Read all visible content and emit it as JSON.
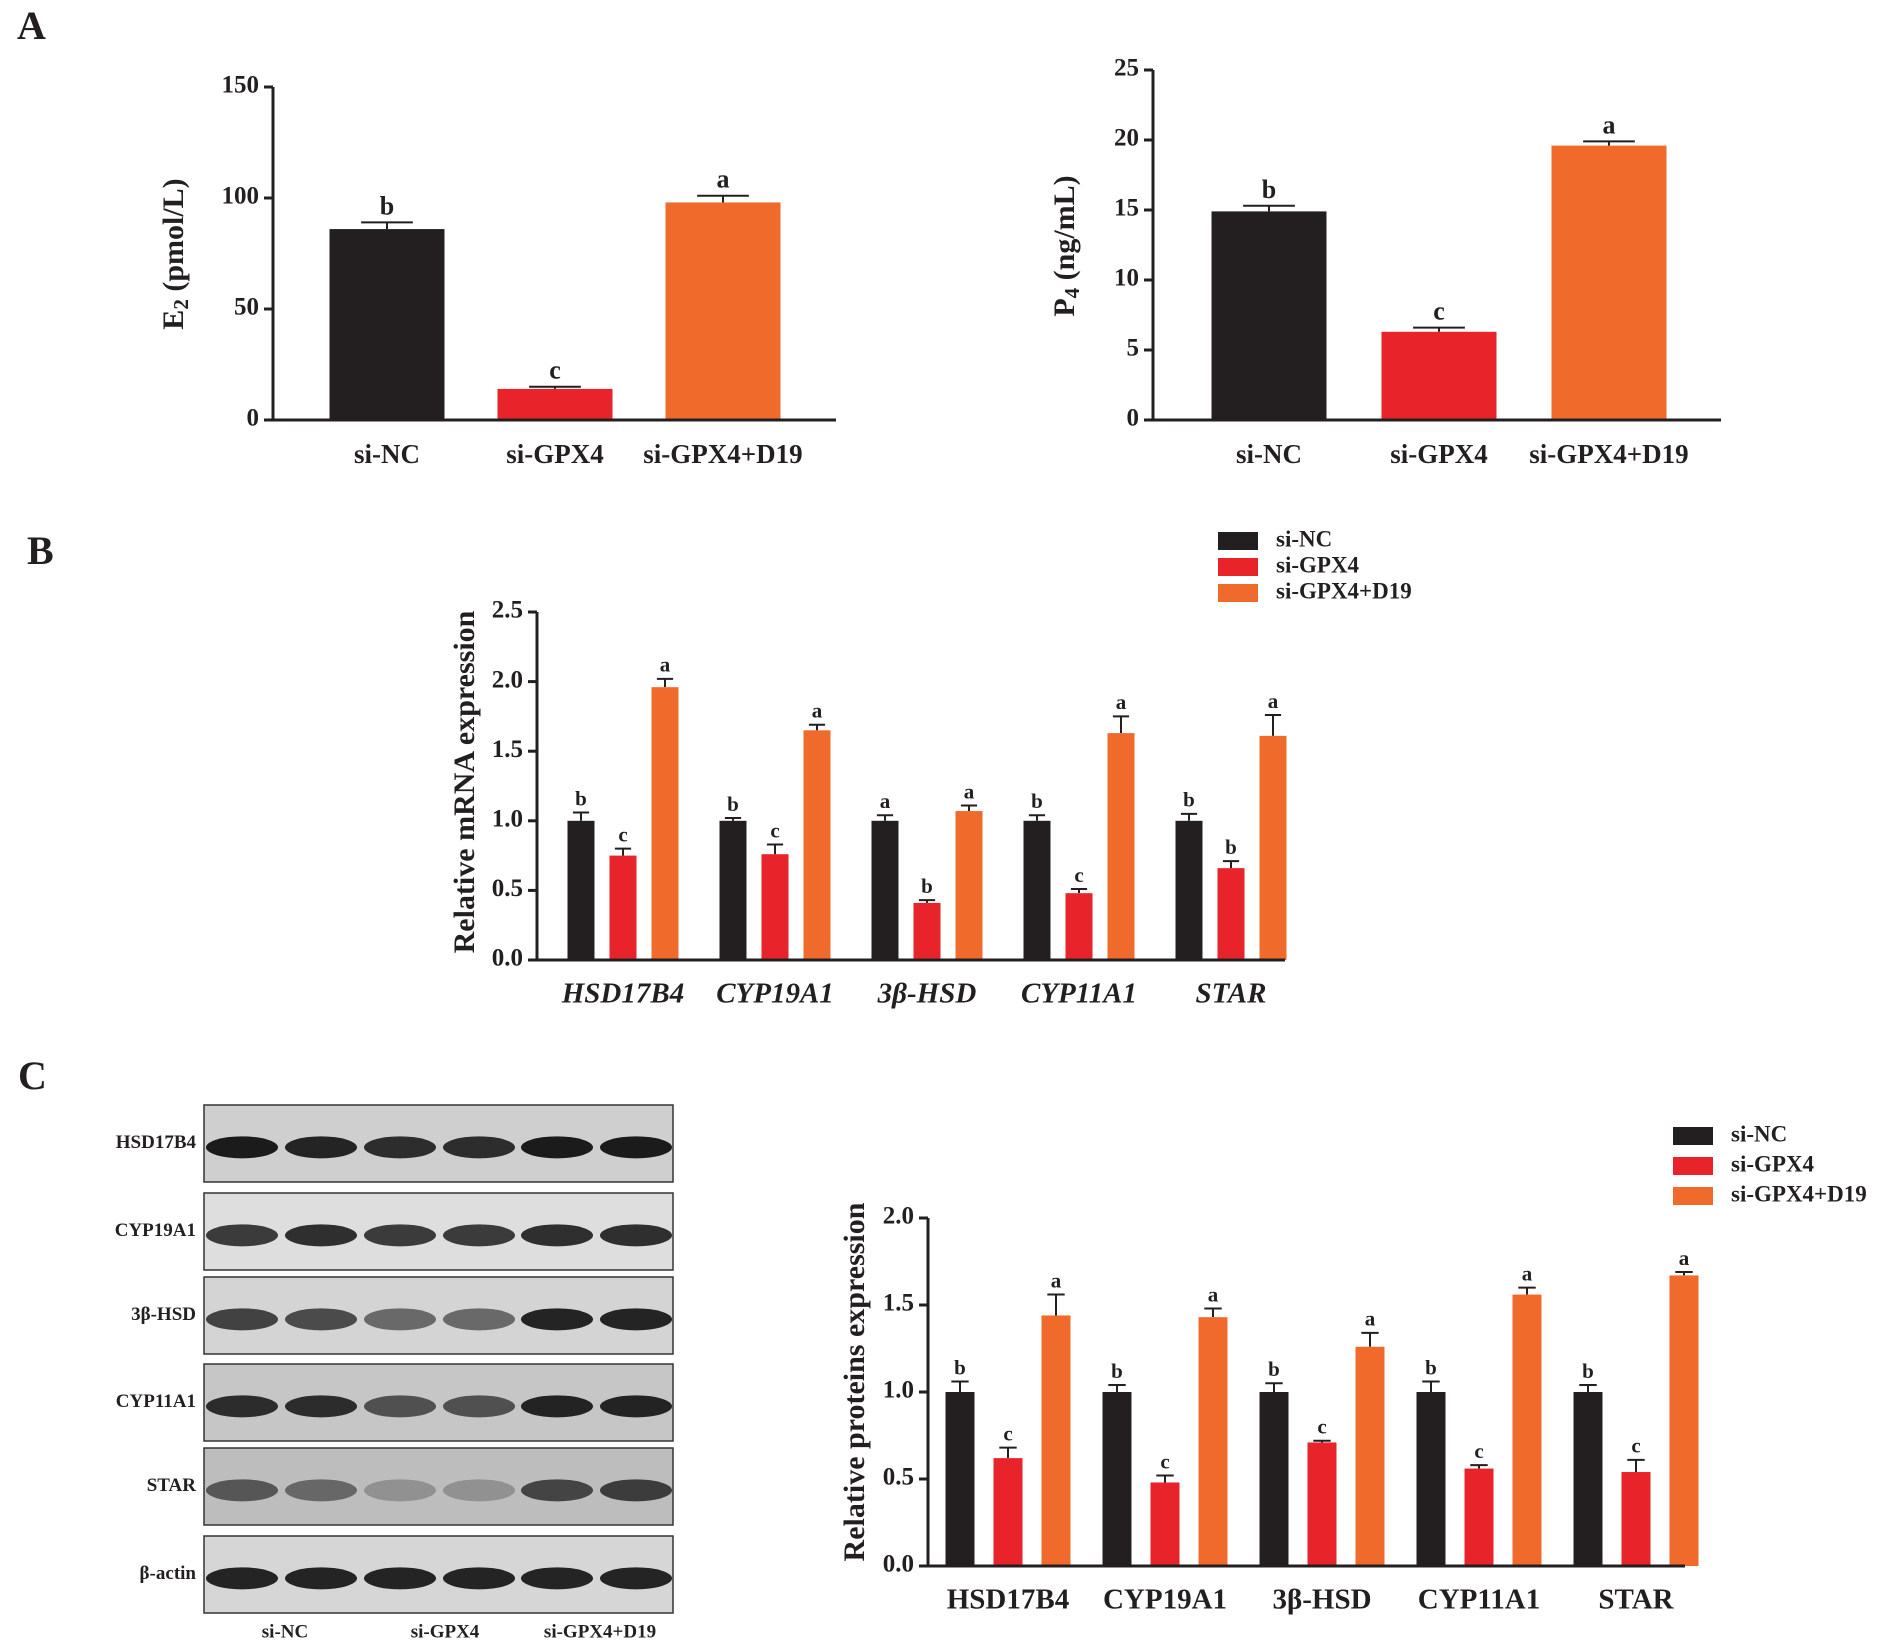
{
  "panels": [
    "A",
    "B",
    "C"
  ],
  "blot": {
    "rows": [
      "HSD17B4",
      "CYP19A1",
      "3β-HSD",
      "CYP11A1",
      "STAR",
      "β-actin"
    ],
    "lanes": [
      "si-NC",
      "si-GPX4",
      "si-GPX4+D19"
    ]
  },
  "chart_data": [
    {
      "type": "bar",
      "ylabel": {
        "main": "E",
        "sub": "2",
        "rest": " (pmol/L)"
      },
      "categories": [
        "si-NC",
        "si-GPX4",
        "si-GPX4+D19"
      ],
      "values": [
        86,
        14,
        98
      ],
      "errors": [
        3,
        1,
        3
      ],
      "annotations": [
        "b",
        "c",
        "a"
      ],
      "colors": [
        "#231f20",
        "#e8232a",
        "#f06a2c"
      ],
      "ylim": [
        0,
        150
      ],
      "yticks": [
        0,
        50,
        100,
        150
      ]
    },
    {
      "type": "bar",
      "ylabel": {
        "main": "P",
        "sub": "4",
        "rest": " (ng/mL)"
      },
      "categories": [
        "si-NC",
        "si-GPX4",
        "si-GPX4+D19"
      ],
      "values": [
        14.9,
        6.3,
        19.6
      ],
      "errors": [
        0.4,
        0.3,
        0.3
      ],
      "annotations": [
        "b",
        "c",
        "a"
      ],
      "colors": [
        "#231f20",
        "#e8232a",
        "#f06a2c"
      ],
      "ylim": [
        0,
        25
      ],
      "yticks": [
        0,
        5,
        10,
        15,
        20,
        25
      ]
    },
    {
      "type": "grouped-bar",
      "ylabel": "Relative mRNA expression",
      "italic_categories": true,
      "categories": [
        "HSD17B4",
        "CYP19A1",
        "3β-HSD",
        "CYP11A1",
        "STAR"
      ],
      "series": [
        {
          "name": "si-NC",
          "color": "#231f20",
          "values": [
            1,
            1,
            1,
            1,
            1
          ],
          "errors": [
            0.06,
            0.02,
            0.04,
            0.04,
            0.05
          ],
          "annotations": [
            "b",
            "b",
            "a",
            "b",
            "b"
          ]
        },
        {
          "name": "si-GPX4",
          "color": "#e8232a",
          "values": [
            0.75,
            0.76,
            0.41,
            0.48,
            0.66
          ],
          "errors": [
            0.05,
            0.07,
            0.02,
            0.03,
            0.05
          ],
          "annotations": [
            "c",
            "c",
            "b",
            "c",
            "b"
          ]
        },
        {
          "name": "si-GPX4+D19",
          "color": "#f06a2c",
          "values": [
            1.96,
            1.65,
            1.07,
            1.63,
            1.61
          ],
          "errors": [
            0.06,
            0.04,
            0.04,
            0.12,
            0.15
          ],
          "annotations": [
            "a",
            "a",
            "a",
            "a",
            "a"
          ]
        }
      ],
      "ylim": [
        0,
        2.5
      ],
      "yticks": [
        {
          "value": 0,
          "label": "0.0"
        },
        0.5,
        {
          "value": 1,
          "label": "1.0"
        },
        1.5,
        {
          "value": 2,
          "label": "2.0"
        },
        2.5
      ]
    },
    {
      "type": "grouped-bar",
      "ylabel": "Relative proteins expression",
      "italic_categories": false,
      "categories": [
        "HSD17B4",
        "CYP19A1",
        "3β-HSD",
        "CYP11A1",
        "STAR"
      ],
      "series": [
        {
          "name": "si-NC",
          "color": "#231f20",
          "values": [
            1,
            1,
            1,
            1,
            1
          ],
          "errors": [
            0.06,
            0.04,
            0.05,
            0.06,
            0.04
          ],
          "annotations": [
            "b",
            "b",
            "b",
            "b",
            "b"
          ]
        },
        {
          "name": "si-GPX4",
          "color": "#e8232a",
          "values": [
            0.62,
            0.48,
            0.71,
            0.56,
            0.54
          ],
          "errors": [
            0.06,
            0.04,
            0.01,
            0.02,
            0.07
          ],
          "annotations": [
            "c",
            "c",
            "c",
            "c",
            "c"
          ]
        },
        {
          "name": "si-GPX4+D19",
          "color": "#f06a2c",
          "values": [
            1.44,
            1.43,
            1.26,
            1.56,
            1.67
          ],
          "errors": [
            0.12,
            0.05,
            0.08,
            0.04,
            0.02
          ],
          "annotations": [
            "a",
            "a",
            "a",
            "a",
            "a"
          ]
        }
      ],
      "ylim": [
        0,
        2
      ],
      "yticks": [
        {
          "value": 0,
          "label": "0.0"
        },
        0.5,
        {
          "value": 1,
          "label": "1.0"
        },
        1.5,
        {
          "value": 2,
          "label": "2.0"
        }
      ]
    }
  ]
}
